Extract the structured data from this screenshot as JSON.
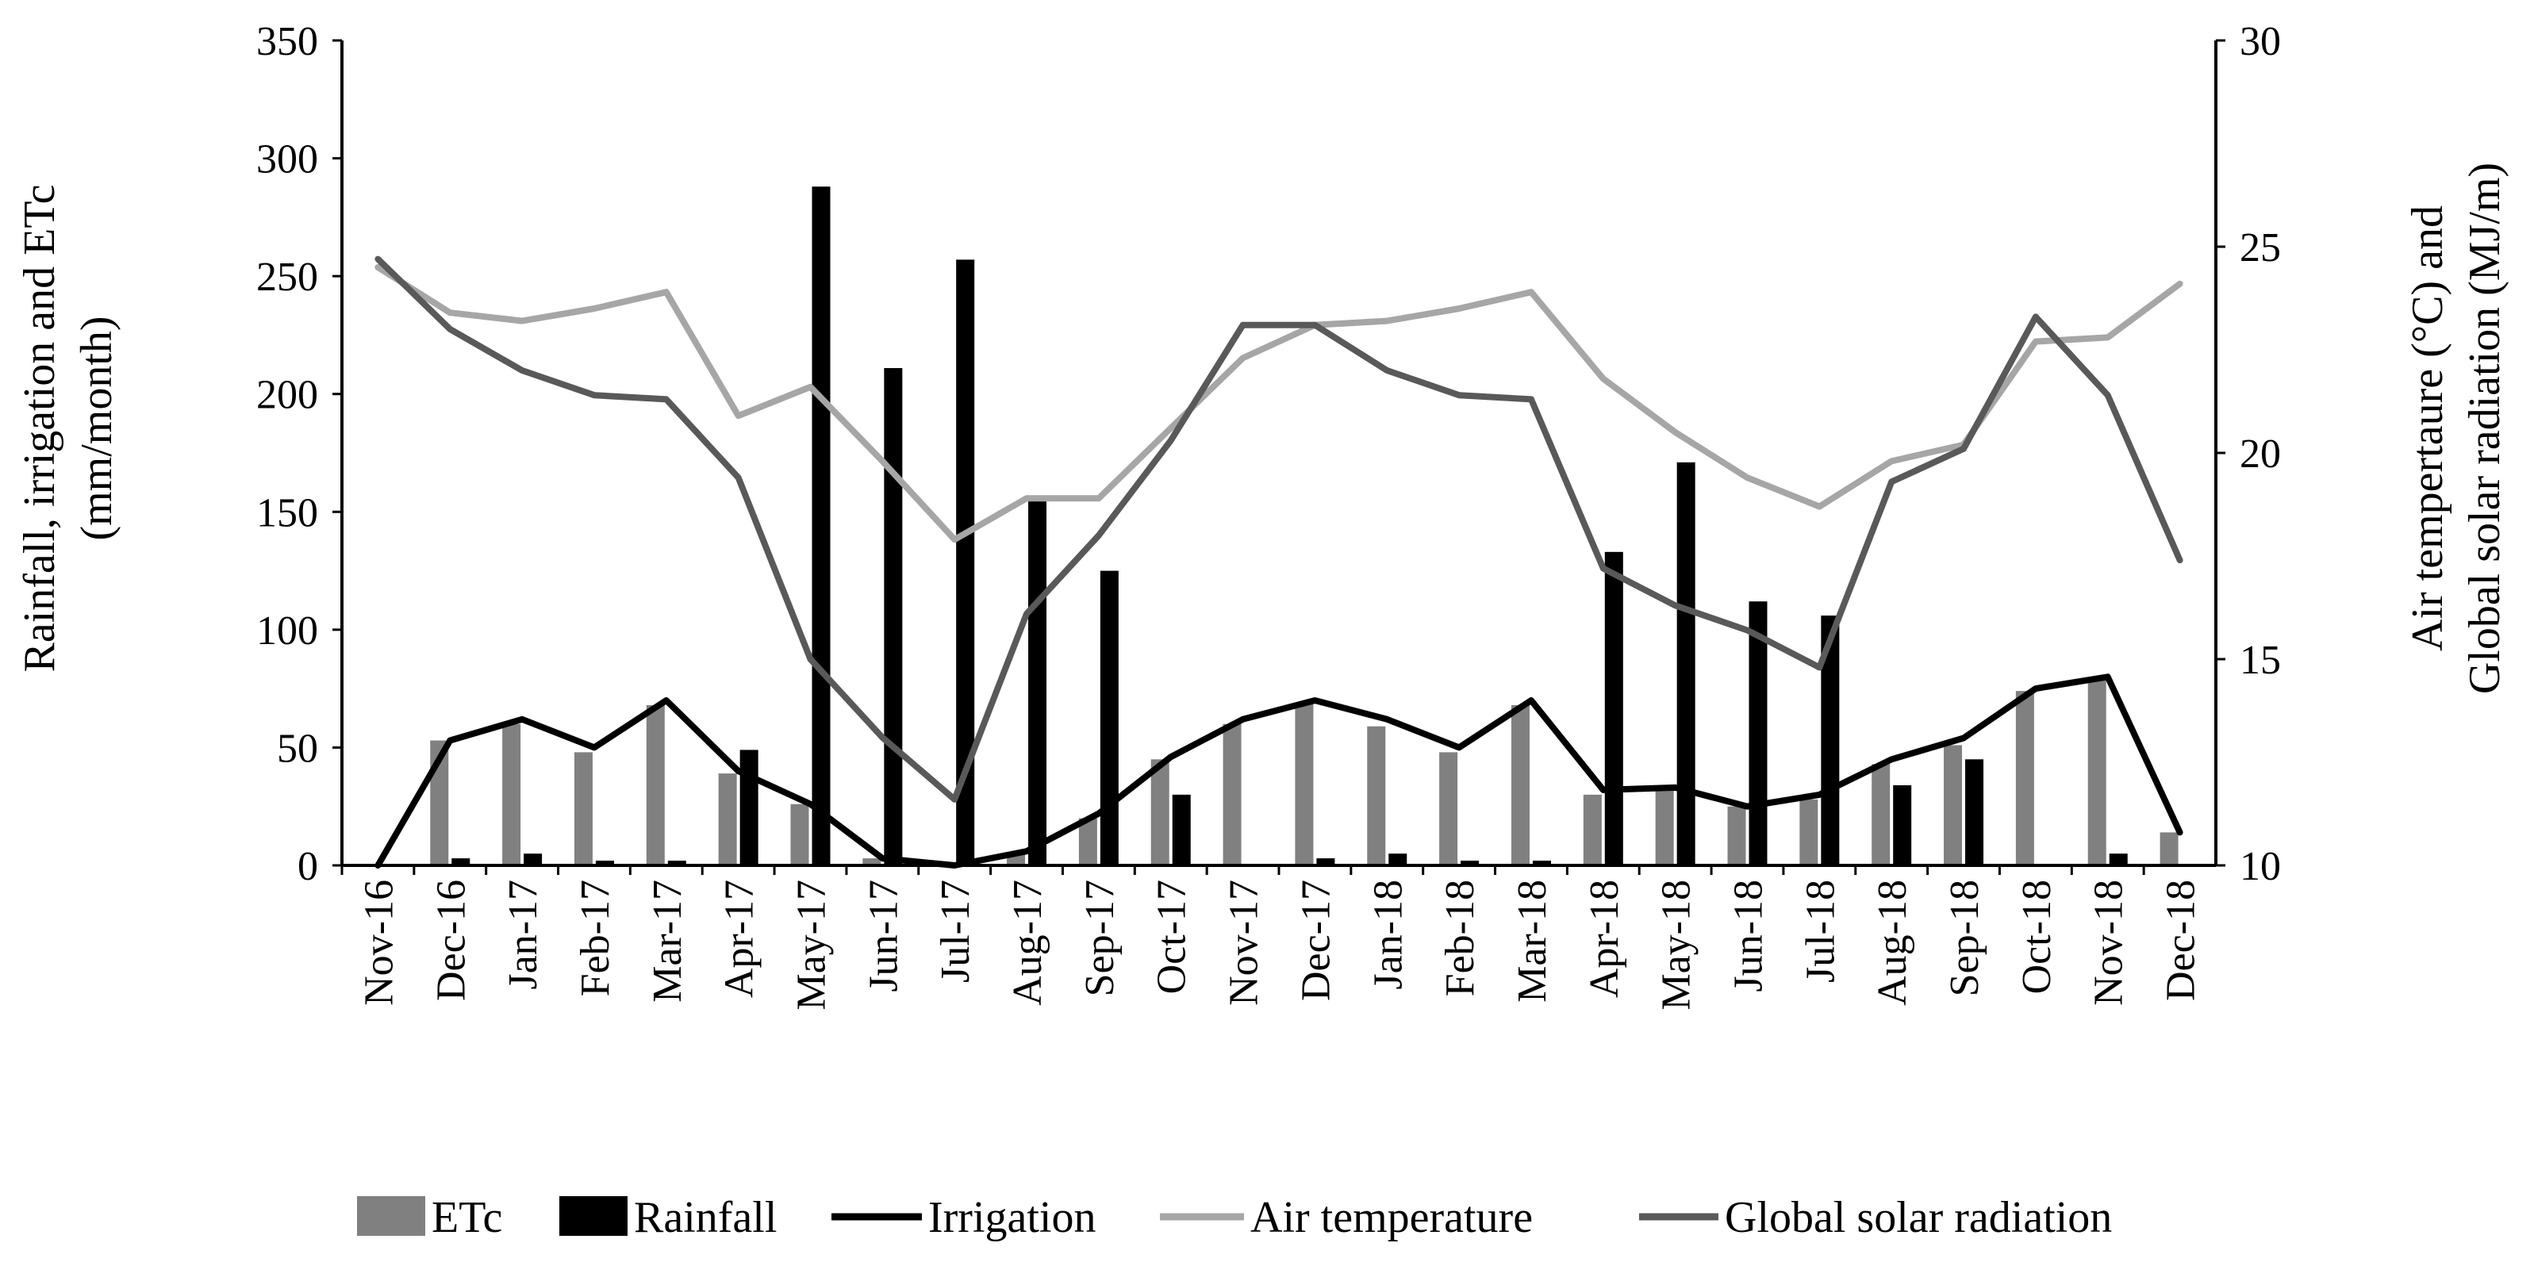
{
  "chart_data": {
    "type": "bar",
    "categories": [
      "Nov-16",
      "Dec-16",
      "Jan-17",
      "Feb-17",
      "Mar-17",
      "Apr-17",
      "May-17",
      "Jun-17",
      "Jul-17",
      "Aug-17",
      "Sep-17",
      "Oct-17",
      "Nov-17",
      "Dec-17",
      "Jan-18",
      "Feb-18",
      "Mar-18",
      "Apr-18",
      "May-18",
      "Jun-18",
      "Jul-18",
      "Aug-18",
      "Sep-18",
      "Oct-18",
      "Nov-18",
      "Dec-18"
    ],
    "left_axis": {
      "label_line1": "Rainfall, irrigation and ETc",
      "label_line2": "(mm/month)",
      "ylim": [
        0,
        350
      ],
      "ticks": [
        0,
        50,
        100,
        150,
        200,
        250,
        300,
        350
      ]
    },
    "right_axis": {
      "label_line1": "Air tempertaure (°C) and",
      "label_line2": "Global solar radiation (MJ/m)",
      "ylim": [
        10,
        30
      ],
      "ticks": [
        10,
        15,
        20,
        25,
        30
      ]
    },
    "series": [
      {
        "name": "ETc",
        "kind": "bar",
        "axis": "left",
        "color": "#808080",
        "values": [
          0,
          53,
          60,
          48,
          68,
          39,
          26,
          3,
          1,
          5,
          20,
          45,
          60,
          69,
          59,
          48,
          68,
          30,
          32,
          25,
          28,
          43,
          51,
          74,
          79,
          14
        ]
      },
      {
        "name": "Rainfall",
        "kind": "bar",
        "axis": "left",
        "color": "#000000",
        "values": [
          0,
          3,
          5,
          2,
          2,
          49,
          288,
          211,
          257,
          155,
          125,
          30,
          0,
          3,
          5,
          2,
          2,
          133,
          171,
          112,
          106,
          34,
          45,
          0,
          5,
          0
        ]
      },
      {
        "name": "Irrigation",
        "kind": "line",
        "axis": "left",
        "color": "#000000",
        "values": [
          0,
          53,
          62,
          50,
          70,
          40,
          26,
          3,
          0,
          6,
          22,
          46,
          62,
          70,
          62,
          50,
          70,
          32,
          33,
          25,
          30,
          45,
          54,
          75,
          80,
          14
        ]
      },
      {
        "name": "Air temperature",
        "kind": "line",
        "axis": "right",
        "color": "#a6a6a6",
        "values": [
          24.5,
          23.4,
          23.2,
          23.5,
          23.9,
          20.9,
          21.6,
          19.8,
          17.9,
          18.9,
          18.9,
          20.6,
          22.3,
          23.1,
          23.2,
          23.5,
          23.9,
          21.8,
          20.5,
          19.4,
          18.7,
          19.8,
          20.2,
          22.7,
          22.8,
          24.1
        ]
      },
      {
        "name": "Global solar radiation",
        "kind": "line",
        "axis": "right",
        "color": "#595959",
        "values": [
          24.7,
          23.0,
          22.0,
          21.4,
          21.3,
          19.4,
          15.0,
          13.1,
          11.6,
          16.1,
          18.0,
          20.3,
          23.1,
          23.1,
          22.0,
          21.4,
          21.3,
          17.2,
          16.3,
          15.7,
          14.8,
          19.3,
          20.1,
          23.3,
          21.4,
          17.4
        ]
      }
    ],
    "legend_position": "bottom"
  }
}
